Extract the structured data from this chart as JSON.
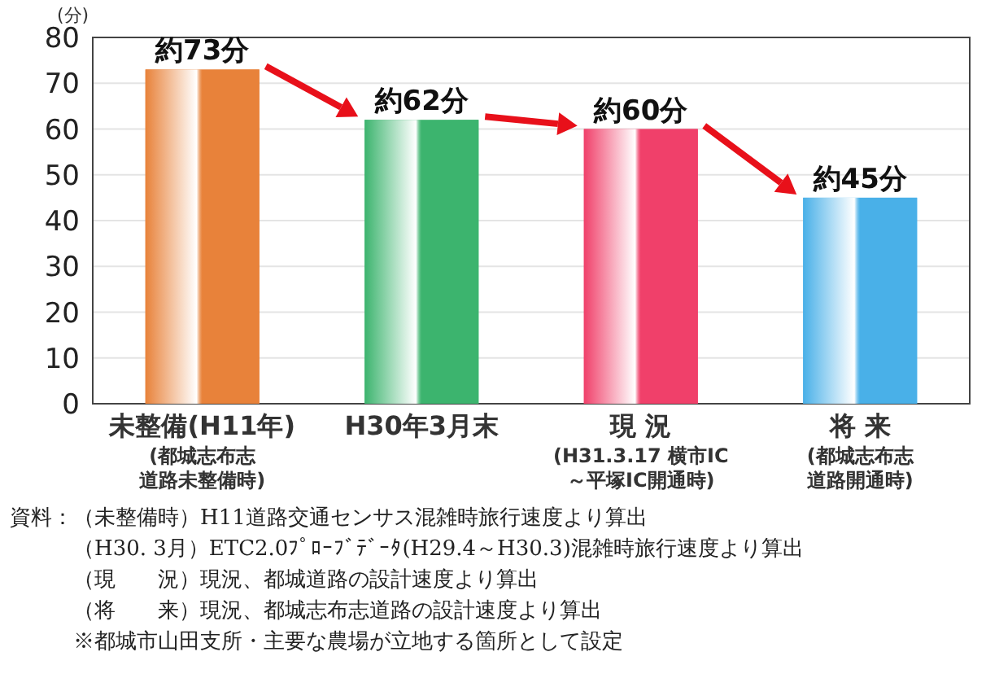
{
  "chart_data": {
    "type": "bar",
    "ylabel": "(分)",
    "categories": [
      "未整備(H11年)\n(都城志布志道路未整備時)",
      "H30年3月末",
      "現 況\n(H31.3.17 横市IC\n～平塚IC開通時)",
      "将 来\n(都城志布志道路開通時)"
    ],
    "values": [
      73,
      62,
      60,
      45
    ],
    "colors": [
      "#e8823a",
      "#3cb46e",
      "#f0406a",
      "#49b0e8"
    ],
    "value_labels": [
      "約73分",
      "約62分",
      "約60分",
      "約45分"
    ],
    "ylim": [
      0,
      80
    ],
    "yticks": [
      0,
      10,
      20,
      30,
      40,
      50,
      60,
      70,
      80
    ],
    "grid": "y",
    "annotations": [
      "資料：（未整備時）H11道路交通センサス混雑時旅行速度より算出",
      "（H30. 3月）ETC2.0ﾌﾟﾛｰﾌﾞﾃﾞｰﾀ(H29.4～H30.3)混雑時旅行速度より算出",
      "（現　　況）現況、都城道路の設計速度より算出",
      "（将　　来）現況、都城志布志道路の設計速度より算出",
      "※都城市山田支所・主要な農場が立地する箇所として設定"
    ]
  }
}
